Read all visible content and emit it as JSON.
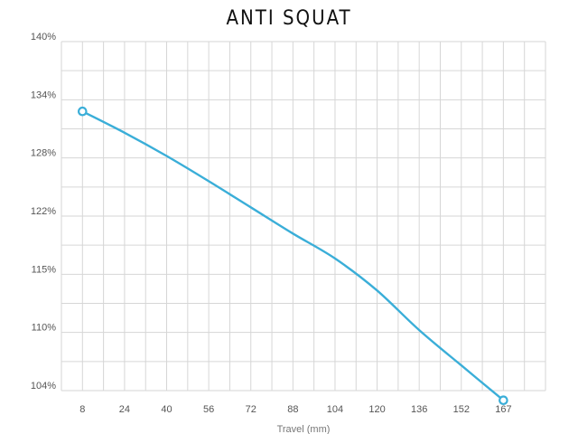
{
  "chart_data": {
    "type": "line",
    "title": "ANTI SQUAT",
    "xlabel": "Travel (mm)",
    "ylabel": "",
    "x_ticks": [
      "8",
      "24",
      "40",
      "56",
      "72",
      "88",
      "104",
      "120",
      "136",
      "152",
      "167"
    ],
    "y_ticks": [
      "104%",
      "110%",
      "115%",
      "122%",
      "128%",
      "134%",
      "140%"
    ],
    "grid": true,
    "series": [
      {
        "color": "#3aaed8",
        "x": [
          8,
          24,
          40,
          56,
          72,
          88,
          104,
          120,
          136,
          152,
          167
        ],
        "y": [
          132.8,
          130.6,
          128.2,
          125.6,
          122.9,
          119.9,
          116.9,
          113.6,
          110.2,
          106.6,
          103.0
        ],
        "endpoint_markers": true
      }
    ]
  }
}
